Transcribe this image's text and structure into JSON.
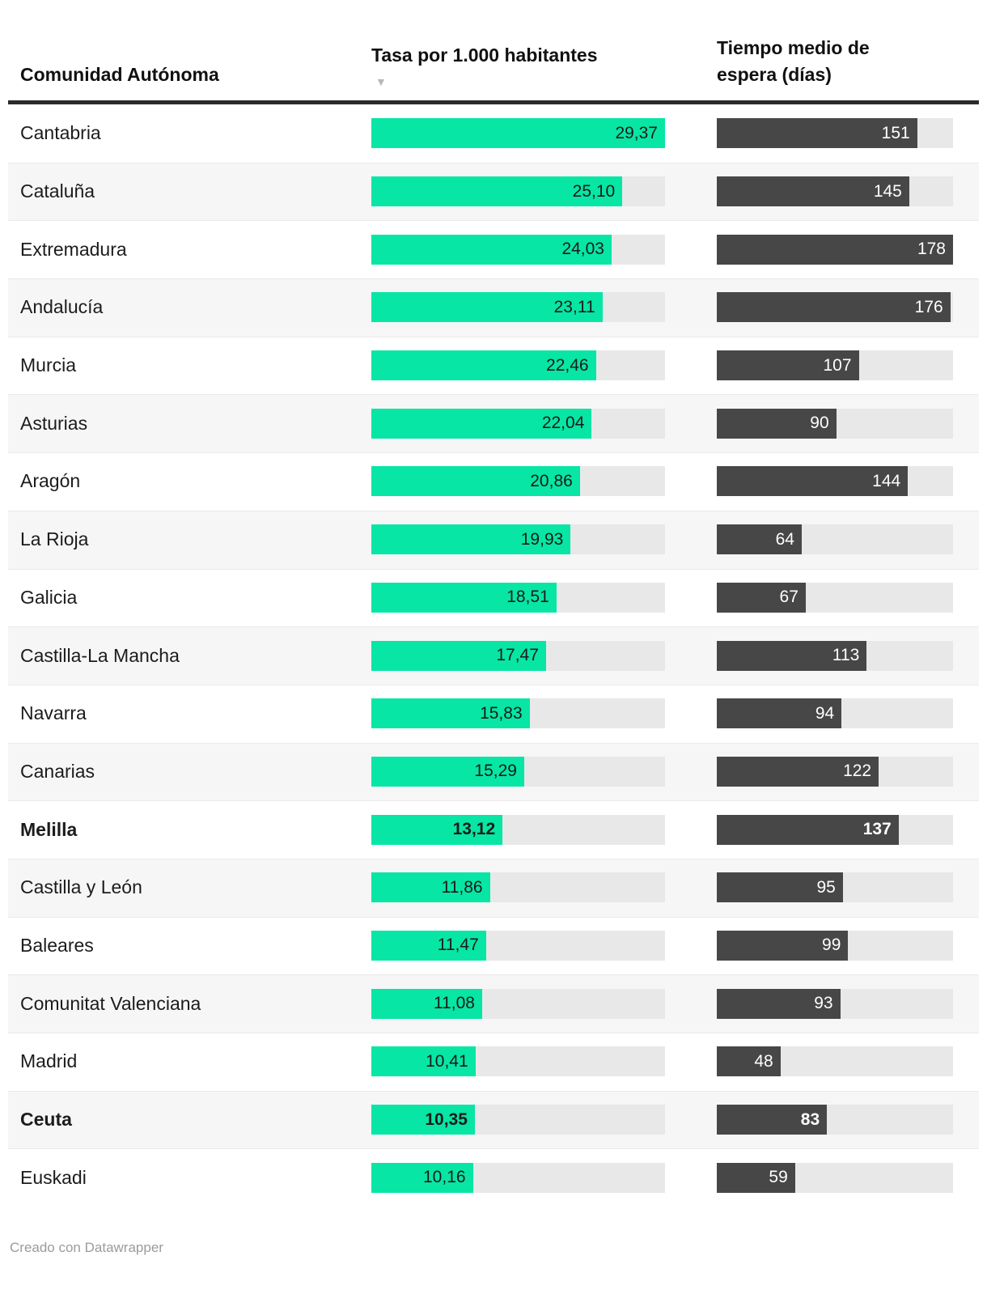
{
  "header": {
    "col_region": "Comunidad Autónoma",
    "col_rate": "Tasa por 1.000 habitantes",
    "col_wait": "Tiempo medio de espera (días)",
    "sort_icon": "▼"
  },
  "footer": {
    "credit": "Creado con Datawrapper"
  },
  "colors": {
    "rate_bar": "#07e6a4",
    "rate_text": "#1a1a1a",
    "wait_bar": "#474747",
    "wait_text": "#ffffff",
    "track": "#e8e8e8",
    "stripe": "#f6f6f6",
    "header_rule": "#2b2b2b"
  },
  "chart_data": {
    "type": "bar",
    "title": "",
    "xlabel": "",
    "ylabel": "",
    "legend_position": "none",
    "grid": false,
    "categories": [
      "Cantabria",
      "Cataluña",
      "Extremadura",
      "Andalucía",
      "Murcia",
      "Asturias",
      "Aragón",
      "La Rioja",
      "Galicia",
      "Castilla-La Mancha",
      "Navarra",
      "Canarias",
      "Melilla",
      "Castilla y León",
      "Baleares",
      "Comunitat Valenciana",
      "Madrid",
      "Ceuta",
      "Euskadi"
    ],
    "series": [
      {
        "name": "Tasa por 1.000 habitantes",
        "values": [
          29.37,
          25.1,
          24.03,
          23.11,
          22.46,
          22.04,
          20.86,
          19.93,
          18.51,
          17.47,
          15.83,
          15.29,
          13.12,
          11.86,
          11.47,
          11.08,
          10.41,
          10.35,
          10.16
        ],
        "display": [
          "29,37",
          "25,10",
          "24,03",
          "23,11",
          "22,46",
          "22,04",
          "20,86",
          "19,93",
          "18,51",
          "17,47",
          "15,83",
          "15,29",
          "13,12",
          "11,86",
          "11,47",
          "11,08",
          "10,41",
          "10,35",
          "10,16"
        ],
        "axis_range": [
          0,
          29.37
        ]
      },
      {
        "name": "Tiempo medio de espera (días)",
        "values": [
          151,
          145,
          178,
          176,
          107,
          90,
          144,
          64,
          67,
          113,
          94,
          122,
          137,
          95,
          99,
          93,
          48,
          83,
          59
        ],
        "display": [
          "151",
          "145",
          "178",
          "176",
          "107",
          "90",
          "144",
          "64",
          "67",
          "113",
          "94",
          "122",
          "137",
          "95",
          "99",
          "93",
          "48",
          "83",
          "59"
        ],
        "axis_range": [
          0,
          178
        ]
      }
    ],
    "bold_categories": [
      "Melilla",
      "Ceuta"
    ],
    "sort": {
      "column": "Tasa por 1.000 habitantes",
      "direction": "descending"
    },
    "row_striping": true,
    "values_inside_bars": true
  }
}
